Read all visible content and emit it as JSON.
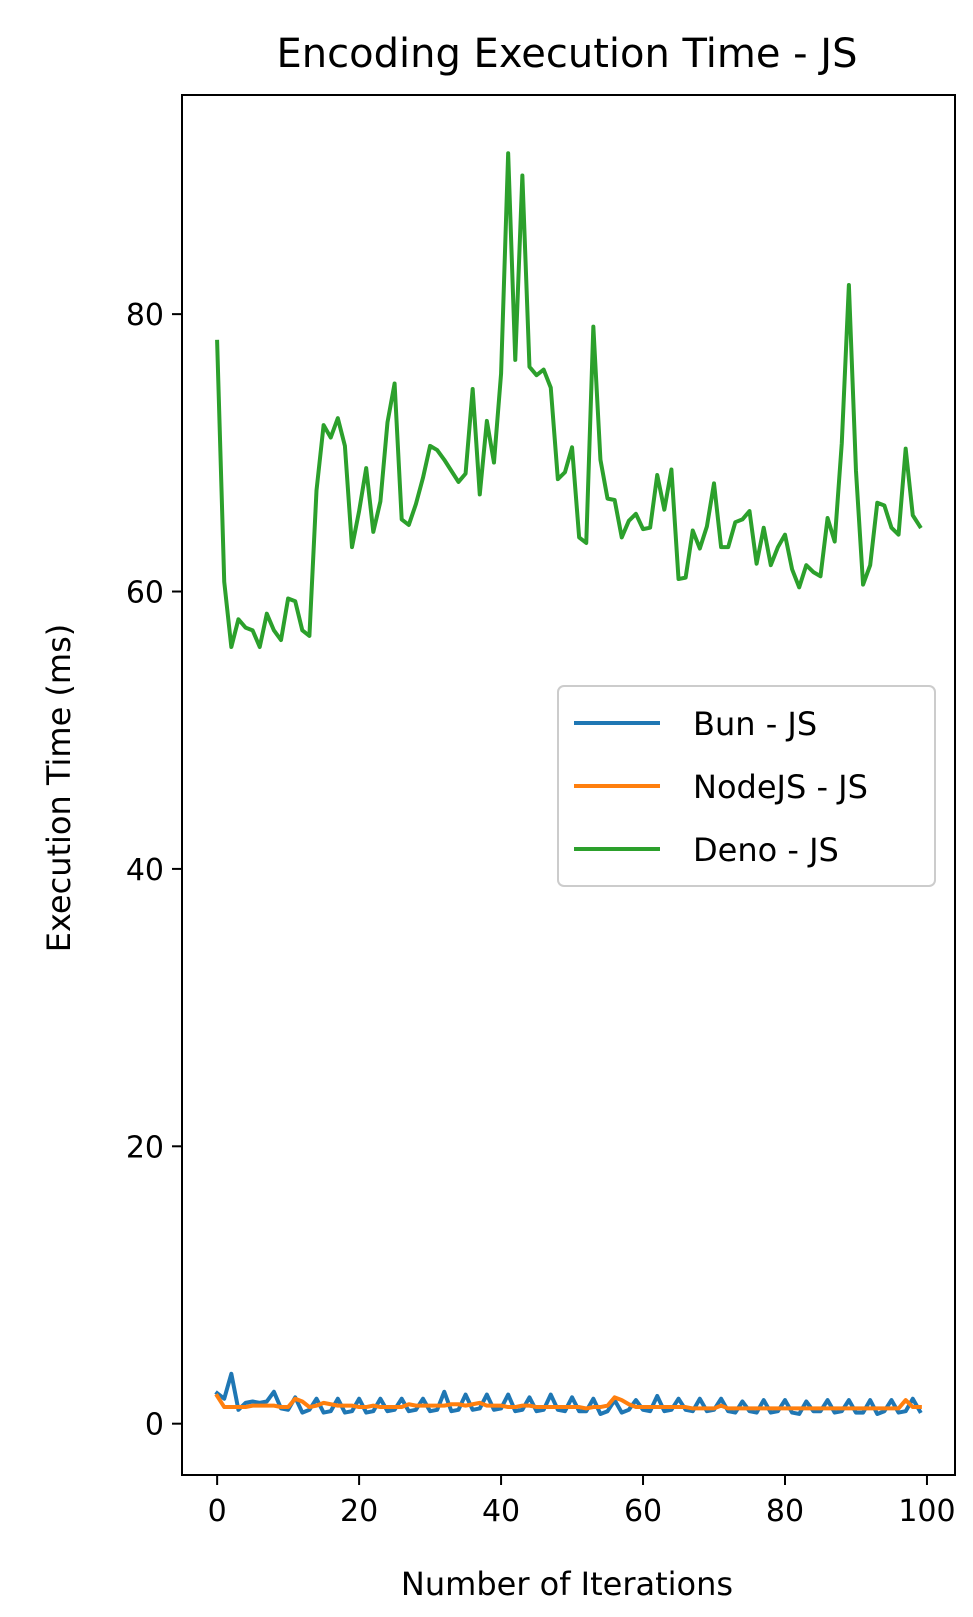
{
  "chart_data": {
    "type": "line",
    "title": "Encoding Execution Time - JS",
    "xlabel": "Number of Iterations",
    "ylabel": "Execution Time (ms)",
    "xlim": [
      -4.95,
      103.95
    ],
    "ylim": [
      -3.7,
      95.8
    ],
    "xticks": [
      0,
      20,
      40,
      60,
      80,
      100
    ],
    "yticks": [
      0,
      20,
      40,
      60,
      80
    ],
    "legend_position": "center-right",
    "grid": false,
    "series": [
      {
        "name": "Bun - JS",
        "color": "#1f77b4",
        "x": [
          0,
          1,
          2,
          3,
          4,
          5,
          6,
          7,
          8,
          9,
          10,
          11,
          12,
          13,
          14,
          15,
          16,
          17,
          18,
          19,
          20,
          21,
          22,
          23,
          24,
          25,
          26,
          27,
          28,
          29,
          30,
          31,
          32,
          33,
          34,
          35,
          36,
          37,
          38,
          39,
          40,
          41,
          42,
          43,
          44,
          45,
          46,
          47,
          48,
          49,
          50,
          51,
          52,
          53,
          54,
          55,
          56,
          57,
          58,
          59,
          60,
          61,
          62,
          63,
          64,
          65,
          66,
          67,
          68,
          69,
          70,
          71,
          72,
          73,
          74,
          75,
          76,
          77,
          78,
          79,
          80,
          81,
          82,
          83,
          84,
          85,
          86,
          87,
          88,
          89,
          90,
          91,
          92,
          93,
          94,
          95,
          96,
          97,
          98,
          99
        ],
        "values": [
          2.2,
          1.8,
          3.6,
          1.0,
          1.5,
          1.6,
          1.5,
          1.6,
          2.3,
          1.1,
          1.0,
          1.9,
          0.8,
          1.0,
          1.8,
          0.8,
          0.9,
          1.8,
          0.8,
          0.9,
          1.8,
          0.8,
          0.9,
          1.8,
          0.9,
          1.0,
          1.8,
          0.9,
          1.0,
          1.8,
          0.9,
          1.0,
          2.3,
          0.9,
          1.0,
          2.1,
          1.0,
          1.1,
          2.1,
          1.0,
          1.1,
          2.1,
          0.9,
          1.0,
          1.9,
          0.9,
          1.0,
          2.1,
          1.0,
          0.9,
          1.9,
          0.9,
          0.9,
          1.8,
          0.7,
          0.9,
          1.7,
          0.8,
          1.0,
          1.7,
          1.0,
          0.9,
          2.0,
          0.9,
          1.0,
          1.8,
          1.0,
          0.9,
          1.8,
          0.9,
          1.0,
          1.8,
          0.9,
          0.8,
          1.6,
          0.9,
          0.8,
          1.7,
          0.8,
          0.9,
          1.7,
          0.8,
          0.7,
          1.6,
          0.9,
          0.9,
          1.7,
          0.8,
          0.9,
          1.7,
          0.8,
          0.8,
          1.7,
          0.7,
          0.9,
          1.7,
          0.8,
          0.9,
          1.8,
          0.9
        ]
      },
      {
        "name": "NodeJS - JS",
        "color": "#ff7f0e",
        "x": [
          0,
          1,
          2,
          3,
          4,
          5,
          6,
          7,
          8,
          9,
          10,
          11,
          12,
          13,
          14,
          15,
          16,
          17,
          18,
          19,
          20,
          21,
          22,
          23,
          24,
          25,
          26,
          27,
          28,
          29,
          30,
          31,
          32,
          33,
          34,
          35,
          36,
          37,
          38,
          39,
          40,
          41,
          42,
          43,
          44,
          45,
          46,
          47,
          48,
          49,
          50,
          51,
          52,
          53,
          54,
          55,
          56,
          57,
          58,
          59,
          60,
          61,
          62,
          63,
          64,
          65,
          66,
          67,
          68,
          69,
          70,
          71,
          72,
          73,
          74,
          75,
          76,
          77,
          78,
          79,
          80,
          81,
          82,
          83,
          84,
          85,
          86,
          87,
          88,
          89,
          90,
          91,
          92,
          93,
          94,
          95,
          96,
          97,
          98,
          99
        ],
        "values": [
          2.0,
          1.2,
          1.2,
          1.2,
          1.2,
          1.3,
          1.3,
          1.3,
          1.3,
          1.2,
          1.2,
          1.8,
          1.6,
          1.2,
          1.3,
          1.5,
          1.4,
          1.3,
          1.3,
          1.3,
          1.2,
          1.2,
          1.3,
          1.2,
          1.2,
          1.2,
          1.2,
          1.4,
          1.3,
          1.3,
          1.3,
          1.3,
          1.3,
          1.4,
          1.4,
          1.3,
          1.4,
          1.5,
          1.3,
          1.3,
          1.3,
          1.2,
          1.2,
          1.3,
          1.3,
          1.2,
          1.2,
          1.2,
          1.2,
          1.2,
          1.2,
          1.2,
          1.1,
          1.2,
          1.2,
          1.3,
          1.9,
          1.7,
          1.4,
          1.2,
          1.2,
          1.2,
          1.2,
          1.2,
          1.2,
          1.2,
          1.2,
          1.1,
          1.1,
          1.1,
          1.1,
          1.3,
          1.1,
          1.1,
          1.1,
          1.1,
          1.1,
          1.1,
          1.1,
          1.1,
          1.1,
          1.1,
          1.1,
          1.1,
          1.1,
          1.1,
          1.1,
          1.1,
          1.1,
          1.1,
          1.1,
          1.1,
          1.1,
          1.1,
          1.1,
          1.1,
          1.1,
          1.7,
          1.2,
          1.2
        ]
      },
      {
        "name": "Deno - JS",
        "color": "#2ca02c",
        "x": [
          0,
          1,
          2,
          3,
          4,
          5,
          6,
          7,
          8,
          9,
          10,
          11,
          12,
          13,
          14,
          15,
          16,
          17,
          18,
          19,
          20,
          21,
          22,
          23,
          24,
          25,
          26,
          27,
          28,
          29,
          30,
          31,
          32,
          33,
          34,
          35,
          36,
          37,
          38,
          39,
          40,
          41,
          42,
          43,
          44,
          45,
          46,
          47,
          48,
          49,
          50,
          51,
          52,
          53,
          54,
          55,
          56,
          57,
          58,
          59,
          60,
          61,
          62,
          63,
          64,
          65,
          66,
          67,
          68,
          69,
          70,
          71,
          72,
          73,
          74,
          75,
          76,
          77,
          78,
          79,
          80,
          81,
          82,
          83,
          84,
          85,
          86,
          87,
          88,
          89,
          90,
          91,
          92,
          93,
          94,
          95,
          96,
          97,
          98,
          99
        ],
        "values": [
          78.0,
          60.7,
          56.0,
          58.0,
          57.4,
          57.2,
          56.0,
          58.4,
          57.2,
          56.5,
          59.5,
          59.3,
          57.2,
          56.8,
          67.3,
          72.0,
          71.1,
          72.5,
          70.5,
          63.2,
          65.8,
          68.9,
          64.3,
          66.5,
          72.2,
          75.0,
          65.2,
          64.8,
          66.3,
          68.2,
          70.5,
          70.2,
          69.5,
          68.7,
          67.9,
          68.5,
          74.6,
          67.0,
          72.3,
          69.3,
          75.7,
          91.6,
          76.7,
          90.0,
          76.2,
          75.6,
          76.0,
          74.7,
          68.1,
          68.6,
          70.4,
          63.9,
          63.5,
          79.1,
          69.5,
          66.7,
          66.6,
          63.9,
          65.1,
          65.6,
          64.5,
          64.6,
          68.4,
          65.9,
          68.8,
          60.9,
          61.0,
          64.4,
          63.1,
          64.7,
          67.8,
          63.2,
          63.2,
          65.0,
          65.2,
          65.8,
          62.0,
          64.6,
          61.9,
          63.2,
          64.1,
          61.6,
          60.3,
          61.9,
          61.4,
          61.1,
          65.3,
          63.6,
          70.7,
          82.1,
          68.7,
          60.5,
          61.9,
          66.4,
          66.2,
          64.6,
          64.1,
          70.3,
          65.5,
          64.7
        ]
      }
    ]
  }
}
